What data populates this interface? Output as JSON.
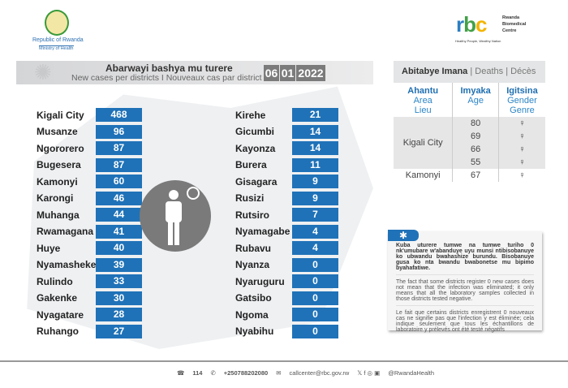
{
  "header": {
    "ministry_line1": "Republic of Rwanda",
    "ministry_line2": "Ministry of Health",
    "rbc_logo": "rbc",
    "rbc_name": [
      "Rwanda",
      "Biomedical",
      "Centre"
    ],
    "rbc_tagline": "Healthy People, Wealthy Nation"
  },
  "cases": {
    "title": "Abarwayi bashya mu turere",
    "subtitle": "New cases per districts  I  Nouveaux cas par district",
    "date": [
      "06",
      "01",
      "2022"
    ],
    "left": [
      {
        "name": "Kigali City",
        "value": "468"
      },
      {
        "name": "Musanze",
        "value": "96"
      },
      {
        "name": "Ngororero",
        "value": "87"
      },
      {
        "name": "Bugesera",
        "value": "87"
      },
      {
        "name": "Kamonyi",
        "value": "60"
      },
      {
        "name": "Karongi",
        "value": "46"
      },
      {
        "name": "Muhanga",
        "value": "44"
      },
      {
        "name": "Rwamagana",
        "value": "41"
      },
      {
        "name": "Huye",
        "value": "40"
      },
      {
        "name": "Nyamasheke",
        "value": "39"
      },
      {
        "name": "Rulindo",
        "value": "33"
      },
      {
        "name": "Gakenke",
        "value": "30"
      },
      {
        "name": "Nyagatare",
        "value": "28"
      },
      {
        "name": "Ruhango",
        "value": "27"
      }
    ],
    "right": [
      {
        "name": "Kirehe",
        "value": "21"
      },
      {
        "name": "Gicumbi",
        "value": "14"
      },
      {
        "name": "Kayonza",
        "value": "14"
      },
      {
        "name": "Burera",
        "value": "11"
      },
      {
        "name": "Gisagara",
        "value": "9"
      },
      {
        "name": "Rusizi",
        "value": "9"
      },
      {
        "name": "Rutsiro",
        "value": "7"
      },
      {
        "name": "Nyamagabe",
        "value": "4"
      },
      {
        "name": "Rubavu",
        "value": "4"
      },
      {
        "name": "Nyanza",
        "value": "0"
      },
      {
        "name": "Nyaruguru",
        "value": "0"
      },
      {
        "name": "Gatsibo",
        "value": "0"
      },
      {
        "name": "Ngoma",
        "value": "0"
      },
      {
        "name": "Nyabihu",
        "value": "0"
      }
    ]
  },
  "deaths": {
    "title": "Abitabye Imana",
    "title_en": "Deaths",
    "title_fr": "Décès",
    "sep": "|",
    "col_area": [
      "Ahantu",
      "Area",
      "Lieu"
    ],
    "col_age": [
      "Imyaka",
      "Age"
    ],
    "col_gender": [
      "Igitsina",
      "Gender",
      "Genre"
    ],
    "area1": "Kigali City",
    "area2": "Kamonyi",
    "ages": [
      "80",
      "69",
      "66",
      "55",
      "67"
    ],
    "gender_symbol": "♀"
  },
  "note": {
    "icon": "✱",
    "rw": "Kuba uturere tumwe na tumwe turiho 0 nk'umubare w'abanduye uyu munsi ntibisobanuye ko ubwandu bwahashize burundu. Bisobanuye gusa ko nta bwandu bwabonetse mu bipimo byahafatiwe.",
    "en": "The fact that some districts register 0 new cases does not mean that the infection was eliminated; it only means that all the laboratory samples collected in those districts tested negative.",
    "fr": "Le fait que certains districts enregistrent 0 nouveaux cas ne signifie pas que l'infection y est éliminée; cela indique seulement que tous les échantillons de laboratoire y prélevés ont été testé négatifs"
  },
  "footer": {
    "hotline": "114",
    "phone": "+250788202080",
    "email": "callcenter@rbc.gov.rw",
    "social_icons": "𝕏 f ◎ ▣",
    "handle": "@RwandaHealth"
  }
}
